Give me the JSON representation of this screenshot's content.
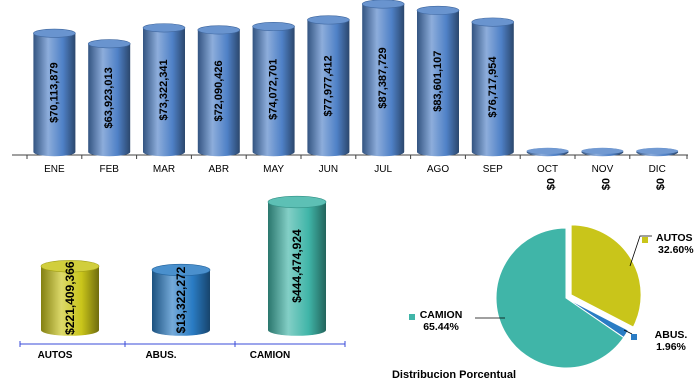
{
  "chart_data": [
    {
      "type": "bar",
      "categories": [
        "ENE",
        "FEB",
        "MAR",
        "ABR",
        "MAY",
        "JUN",
        "JUL",
        "AGO",
        "SEP",
        "OCT",
        "NOV",
        "DIC"
      ],
      "values": [
        70113879,
        63923013,
        73322341,
        72090426,
        74072701,
        77977412,
        87387729,
        83601107,
        76717954,
        0,
        0,
        0
      ],
      "data_labels": [
        "$70,113,879",
        "$63,923,013",
        "$73,322,341",
        "$72,090,426",
        "$74,072,701",
        "$77,977,412",
        "$87,387,729",
        "$83,601,107",
        "$76,717,954",
        "$0",
        "$0",
        "$0"
      ],
      "color": "#4f81c7"
    },
    {
      "type": "bar",
      "categories": [
        "AUTOS",
        "ABUS.",
        "CAMION"
      ],
      "values": [
        221409366,
        13322272,
        444474924
      ],
      "data_labels": [
        "$221,409,366",
        "$13,322,272",
        "$444,474,924"
      ],
      "colors": [
        "#c9c51a",
        "#2a7cc4",
        "#40b5a8"
      ]
    },
    {
      "type": "pie",
      "title": "Distribucion Porcentual",
      "slices": [
        {
          "label": "AUTOS",
          "percent_label": "32.60%",
          "value": 32.6,
          "color": "#c9c51a"
        },
        {
          "label": "ABUS.",
          "percent_label": "1.96%",
          "value": 1.96,
          "color": "#2a7cc4"
        },
        {
          "label": "CAMION",
          "percent_label": "65.44%",
          "value": 65.44,
          "color": "#40b5a8"
        }
      ]
    }
  ]
}
